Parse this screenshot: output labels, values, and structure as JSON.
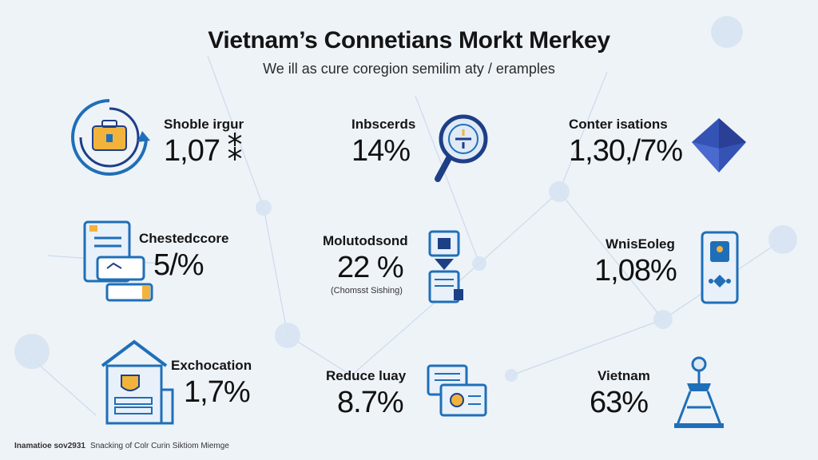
{
  "title": "Vietnam’s Connetians Morkt Merkey",
  "subtitle": "We ill as cure coregion semilim aty / eramples",
  "colors": {
    "primary": "#1f6fb8",
    "navy": "#1d3f86",
    "accent": "#f2b33d",
    "background": "#eef3f8",
    "network": "#c9d8ea"
  },
  "stats": [
    {
      "label": "Shoble irgur",
      "value": "1,07 ⁑",
      "icon": "toolbox-cycle-icon"
    },
    {
      "label": "Inbscerds",
      "value": "14%",
      "icon": "magnifier-icon"
    },
    {
      "label": "Conter isations",
      "value": "1,30,/7%",
      "icon": "diamond-icon"
    },
    {
      "label": "Chestedccore",
      "value": "5/%",
      "icon": "document-card-icon"
    },
    {
      "label": "Molutodsond",
      "value": "22 %",
      "note": "(Chomsst Sishing)",
      "icon": "phone-server-icon"
    },
    {
      "label": "WnisEoleg",
      "value": "1,08%",
      "icon": "mobile-device-icon"
    },
    {
      "label": "Exchocation",
      "value": "1,7%",
      "icon": "bank-building-icon"
    },
    {
      "label": "Reduce luay",
      "value": "8.7%",
      "icon": "browser-windows-icon"
    },
    {
      "label": "Vietnam",
      "value": "63%",
      "icon": "tower-icon"
    }
  ],
  "footer": {
    "source": "Inamatioe sov2931",
    "text": "Snacking of Colr Curin Siktiom Miemge"
  }
}
